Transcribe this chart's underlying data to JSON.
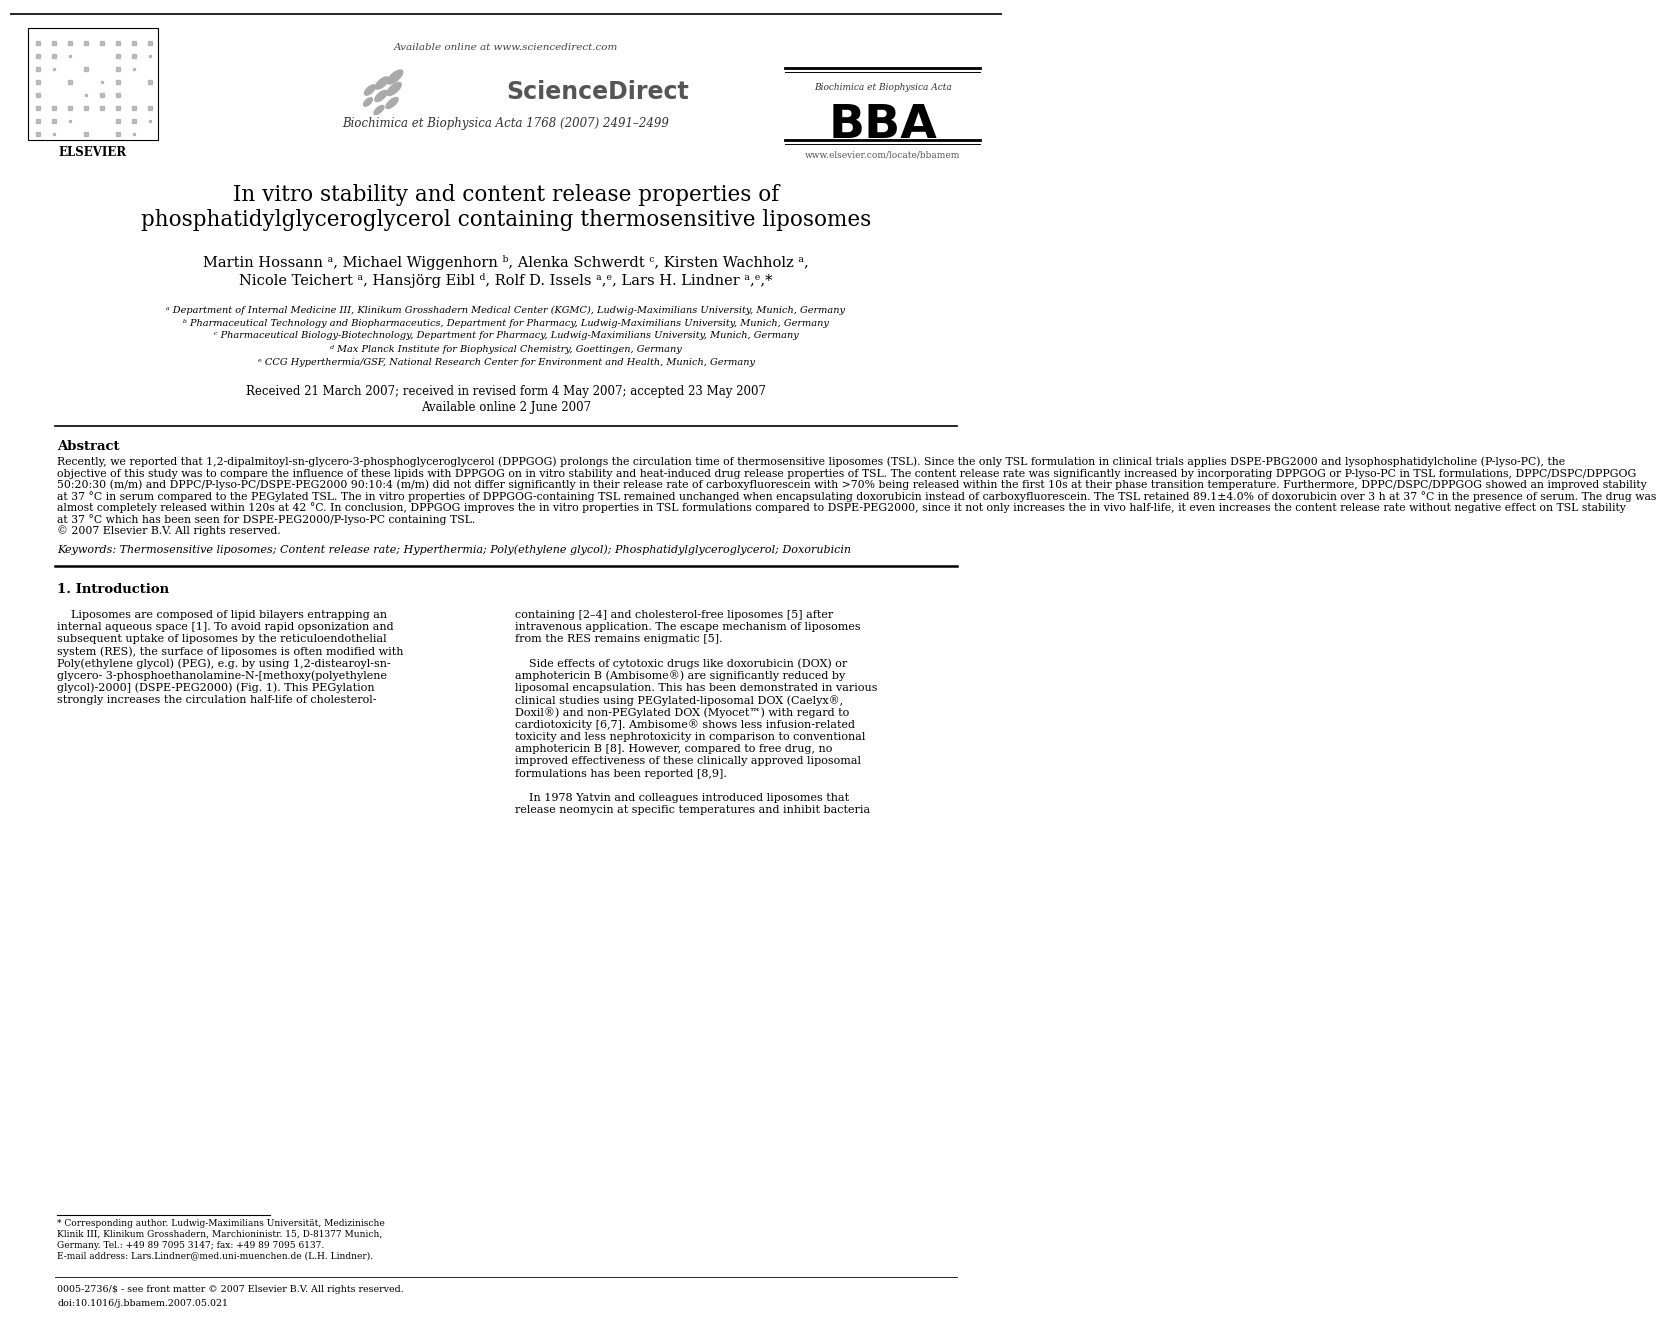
{
  "background_color": "#ffffff",
  "header": {
    "available_online": "Available online at www.sciencedirect.com",
    "journal_name": "Biochimica et Biophysica Acta 1768 (2007) 2491–2499",
    "bba_small": "Biochimica et Biophysica Acta",
    "bba_large": "BBA",
    "bba_url": "www.elsevier.com/locate/bbamem"
  },
  "title_line1": "In vitro stability and content release properties of",
  "title_line2": "phosphatidylglyceroglycerol containing thermosensitive liposomes",
  "authors_line1": "Martin Hossann ᵃ, Michael Wiggenhorn ᵇ, Alenka Schwerdt ᶜ, Kirsten Wachholz ᵃ,",
  "authors_line2": "Nicole Teichert ᵃ, Hansjörg Eibl ᵈ, Rolf D. Issels ᵃ,ᵉ, Lars H. Lindner ᵃ,ᵉ,*",
  "affiliations": [
    "ᵃ Department of Internal Medicine III, Klinikum Grosshadern Medical Center (KGMC), Ludwig-Maximilians University, Munich, Germany",
    "ᵇ Pharmaceutical Technology and Biopharmaceutics, Department for Pharmacy, Ludwig-Maximilians University, Munich, Germany",
    "ᶜ Pharmaceutical Biology-Biotechnology, Department for Pharmacy, Ludwig-Maximilians University, Munich, Germany",
    "ᵈ Max Planck Institute for Biophysical Chemistry, Goettingen, Germany",
    "ᵉ CCG Hyperthermia/GSF, National Research Center for Environment and Health, Munich, Germany"
  ],
  "dates": "Received 21 March 2007; received in revised form 4 May 2007; accepted 23 May 2007",
  "available": "Available online 2 June 2007",
  "abstract_title": "Abstract",
  "abstract_lines": [
    "Recently, we reported that 1,2-dipalmitoyl-sn-glycero-3-phosphoglyceroglycerol (DPPGOG) prolongs the circulation time of thermosensitive liposomes (TSL). Since the only TSL formulation in clinical trials applies DSPE-PBG2000 and lysophosphatidylcholine (P-lyso-PC), the",
    "objective of this study was to compare the influence of these lipids with DPPGOG on in vitro stability and heat-induced drug release properties of TSL. The content release rate was significantly increased by incorporating DPPGOG or P-lyso-PC in TSL formulations, DPPC/DSPC/DPPGOG",
    "50:20:30 (m/m) and DPPC/P-lyso-PC/DSPE-PEG2000 90:10:4 (m/m) did not differ significantly in their release rate of carboxyfluorescein with >70% being released within the first 10s at their phase transition temperature. Furthermore, DPPC/DSPC/DPPGOG showed an improved stability",
    "at 37 °C in serum compared to the PEGylated TSL. The in vitro properties of DPPGOG-containing TSL remained unchanged when encapsulating doxorubicin instead of carboxyfluorescein. The TSL retained 89.1±4.0% of doxorubicin over 3 h at 37 °C in the presence of serum. The drug was",
    "almost completely released within 120s at 42 °C. In conclusion, DPPGOG improves the in vitro properties in TSL formulations compared to DSPE-PEG2000, since it not only increases the in vivo half-life, it even increases the content release rate without negative effect on TSL stability",
    "at 37 °C which has been seen for DSPE-PEG2000/P-lyso-PC containing TSL.",
    "© 2007 Elsevier B.V. All rights reserved."
  ],
  "keywords": "Keywords: Thermosensitive liposomes; Content release rate; Hyperthermia; Poly(ethylene glycol); Phosphatidylglyceroglycerol; Doxorubicin",
  "section1_title": "1. Introduction",
  "intro_left_lines": [
    "    Liposomes are composed of lipid bilayers entrapping an",
    "internal aqueous space [1]. To avoid rapid opsonization and",
    "subsequent uptake of liposomes by the reticuloendothelial",
    "system (RES), the surface of liposomes is often modified with",
    "Poly(ethylene glycol) (PEG), e.g. by using 1,2-distearoyl-sn-",
    "glycero- 3-phosphoethanolamine-N-[methoxy(polyethylene",
    "glycol)-2000] (DSPE-PEG2000) (Fig. 1). This PEGylation",
    "strongly increases the circulation half-life of cholesterol-"
  ],
  "intro_right_lines": [
    "containing [2–4] and cholesterol-free liposomes [5] after",
    "intravenous application. The escape mechanism of liposomes",
    "from the RES remains enigmatic [5].",
    "",
    "    Side effects of cytotoxic drugs like doxorubicin (DOX) or",
    "amphotericin B (Ambisome®) are significantly reduced by",
    "liposomal encapsulation. This has been demonstrated in various",
    "clinical studies using PEGylated-liposomal DOX (Caelyx®,",
    "Doxil®) and non-PEGylated DOX (Myocet™) with regard to",
    "cardiotoxicity [6,7]. Ambisome® shows less infusion-related",
    "toxicity and less nephrotoxicity in comparison to conventional",
    "amphotericin B [8]. However, compared to free drug, no",
    "improved effectiveness of these clinically approved liposomal",
    "formulations has been reported [8,9].",
    "",
    "    In 1978 Yatvin and colleagues introduced liposomes that",
    "release neomycin at specific temperatures and inhibit bacteria"
  ],
  "footnote_lines": [
    "* Corresponding author. Ludwig-Maximilians Universität, Medizinische",
    "Klinik III, Klinikum Grosshadern, Marchioninistr. 15, D-81377 Munich,",
    "Germany. Tel.: +49 89 7095 3147; fax: +49 89 7095 6137.",
    "E-mail address: Lars.Lindner@med.uni-muenchen.de (L.H. Lindner)."
  ],
  "bottom_line1": "0005-2736/$ - see front matter © 2007 Elsevier B.V. All rights reserved.",
  "bottom_line2": "doi:10.1016/j.bbamem.2007.05.021"
}
